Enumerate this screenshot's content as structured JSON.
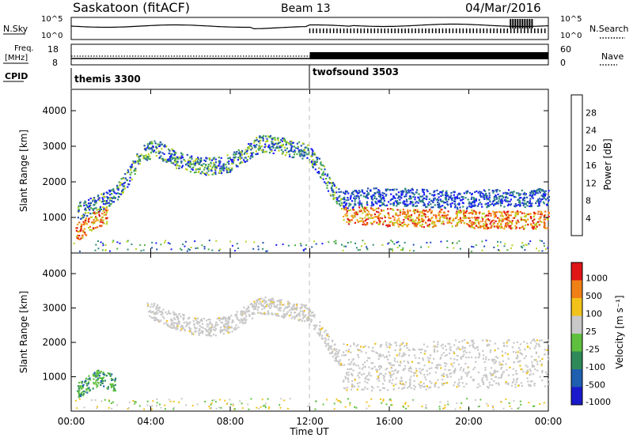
{
  "header": {
    "title": "Saskatoon (fitACF)",
    "beam": "Beam 13",
    "date": "04/Mar/2016"
  },
  "params": {
    "nsky_label": "N.Sky",
    "nsearch_label": "N.Search",
    "nsky_ticks": [
      "10^5",
      "10^0"
    ],
    "nsearch_ticks": [
      "10^5",
      "10^0"
    ],
    "freq_label_line1": "Freq.",
    "freq_label_line2": "[MHz]",
    "freq_ticks": [
      "18",
      "8"
    ],
    "nave_label": "Nave",
    "nave_ticks": [
      "60",
      "0"
    ],
    "cpid_label": "CPID",
    "cpid_segments": [
      {
        "name": "themis",
        "id": "3300",
        "label": "themis 3300"
      },
      {
        "name": "twofsound",
        "id": "3503",
        "label": "twofsound 3503"
      }
    ],
    "cpid_change_time": "12:00"
  },
  "chart_data": [
    {
      "type": "heatmap",
      "panel": "power",
      "title": "",
      "xlabel": "Time UT",
      "ylabel": "Slant Range [km]",
      "xlim": [
        "00:00",
        "24:00"
      ],
      "ylim": [
        0,
        4600
      ],
      "y_ticks": [
        1000,
        2000,
        3000,
        4000
      ],
      "colorbar_label": "Power [dB]",
      "colorbar_ticks": [
        "4",
        "8",
        "12",
        "16",
        "20",
        "24",
        "28"
      ],
      "colorbar_colors": [
        "#1a1aff",
        "#1f4fb0",
        "#2f8a7a",
        "#4fb045",
        "#b9d21f",
        "#f2a51a",
        "#f06a16",
        "#e01616"
      ],
      "scatter_bands": [
        {
          "x": [
            0.3,
            0.8,
            1.5,
            2.2,
            2.8,
            3.2,
            3.6,
            4.2
          ],
          "y": [
            1200,
            1300,
            1450,
            1700,
            2100,
            2500,
            2800,
            3000
          ],
          "level": "mid"
        },
        {
          "x": [
            4.2,
            5.0,
            6.0,
            7.0,
            8.0,
            8.8,
            9.5,
            10.2,
            11.0,
            11.8,
            12.4,
            13.0,
            13.6
          ],
          "y": [
            3000,
            2700,
            2500,
            2450,
            2550,
            2850,
            3100,
            3050,
            2950,
            2850,
            2500,
            1900,
            1450
          ],
          "level": "mid"
        },
        {
          "x": [
            13.6,
            15.0,
            16.5,
            18.0,
            19.5,
            21.0,
            22.5,
            24.0
          ],
          "y": [
            1100,
            1050,
            1000,
            1000,
            1000,
            950,
            950,
            950
          ],
          "level": "high"
        },
        {
          "x": [
            13.6,
            15.0,
            16.5,
            18.0,
            19.5,
            21.0,
            22.5,
            24.0
          ],
          "y": [
            1500,
            1600,
            1600,
            1550,
            1500,
            1550,
            1550,
            1600
          ],
          "level": "low"
        },
        {
          "x": [
            0.2,
            0.6,
            1.0,
            1.4,
            1.8
          ],
          "y": [
            600,
            700,
            900,
            1000,
            1100
          ],
          "level": "high"
        }
      ]
    },
    {
      "type": "heatmap",
      "panel": "velocity",
      "title": "",
      "xlabel": "Time UT",
      "ylabel": "Slant Range [km]",
      "xlim": [
        "00:00",
        "24:00"
      ],
      "ylim": [
        0,
        4600
      ],
      "y_ticks": [
        1000,
        2000,
        3000,
        4000
      ],
      "colorbar_label": "Velocity [m s⁻¹]",
      "colorbar_ticks": [
        "1000",
        "500",
        "100",
        "25",
        "-25",
        "-100",
        "-500",
        "-1000"
      ],
      "colorbar_colors": [
        "#1a1acc",
        "#1f5fb0",
        "#2f8a5a",
        "#5fc040",
        "#c8c8c8",
        "#f2c21a",
        "#f08016",
        "#e01616"
      ],
      "scatter_bands": [
        {
          "x": [
            3.8,
            5.0,
            6.0,
            7.0,
            8.0,
            8.8,
            9.5,
            10.2,
            11.0,
            11.8,
            12.4,
            13.0,
            13.6
          ],
          "y": [
            3000,
            2700,
            2500,
            2450,
            2550,
            2850,
            3100,
            3050,
            2950,
            2850,
            2500,
            1900,
            1450
          ],
          "level": "neutral"
        },
        {
          "x": [
            13.6,
            15.0,
            16.5,
            18.0,
            19.5,
            21.0,
            22.5,
            24.0
          ],
          "y": [
            1300,
            1300,
            1350,
            1350,
            1400,
            1400,
            1400,
            1450
          ],
          "level": "neutral-band"
        },
        {
          "x": [
            0.2,
            0.6,
            1.0,
            1.4,
            1.8,
            2.2
          ],
          "y": [
            550,
            700,
            900,
            1000,
            900,
            800
          ],
          "level": "positive"
        }
      ]
    }
  ],
  "x_ticks": [
    "00:00",
    "04:00",
    "08:00",
    "12:00",
    "16:00",
    "20:00",
    "00:00"
  ],
  "x_axis_label": "Time UT"
}
